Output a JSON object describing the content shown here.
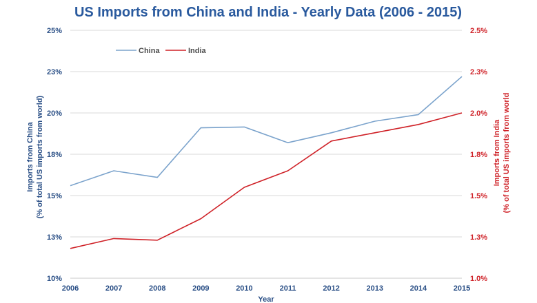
{
  "chart_data": {
    "type": "line",
    "title": "US Imports from China and India - Yearly Data (2006 - 2015)",
    "xlabel": "Year",
    "x": [
      "2006",
      "2007",
      "2008",
      "2009",
      "2010",
      "2011",
      "2012",
      "2013",
      "2014",
      "2015"
    ],
    "y_left": {
      "label_line1": "Imports from China",
      "label_line2": "(% of total US imports from world)",
      "range": [
        10,
        25
      ],
      "tick_values": [
        10,
        12.5,
        15,
        17.5,
        20,
        22.5,
        25
      ],
      "tick_labels": [
        "10%",
        "13%",
        "15%",
        "18%",
        "20%",
        "23%",
        "25%"
      ]
    },
    "y_right": {
      "label_line1": "Imports from India",
      "label_line2": "(% of total US imports from world",
      "range": [
        1.0,
        2.5
      ],
      "tick_values": [
        1.0,
        1.25,
        1.5,
        1.75,
        2.0,
        2.25,
        2.5
      ],
      "tick_labels": [
        "1.0%",
        "1.3%",
        "1.5%",
        "1.8%",
        "2.0%",
        "2.3%",
        "2.5%"
      ]
    },
    "series": [
      {
        "name": "China",
        "axis": "left",
        "color": "#7ba3cc",
        "values": [
          15.6,
          16.5,
          16.1,
          19.1,
          19.15,
          18.2,
          18.8,
          19.5,
          19.9,
          22.2
        ]
      },
      {
        "name": "India",
        "axis": "right",
        "color": "#cf2127",
        "values": [
          1.18,
          1.24,
          1.23,
          1.36,
          1.55,
          1.65,
          1.83,
          1.88,
          1.93,
          2.0
        ]
      }
    ],
    "gridlines": true,
    "legend_position": "top-left"
  }
}
